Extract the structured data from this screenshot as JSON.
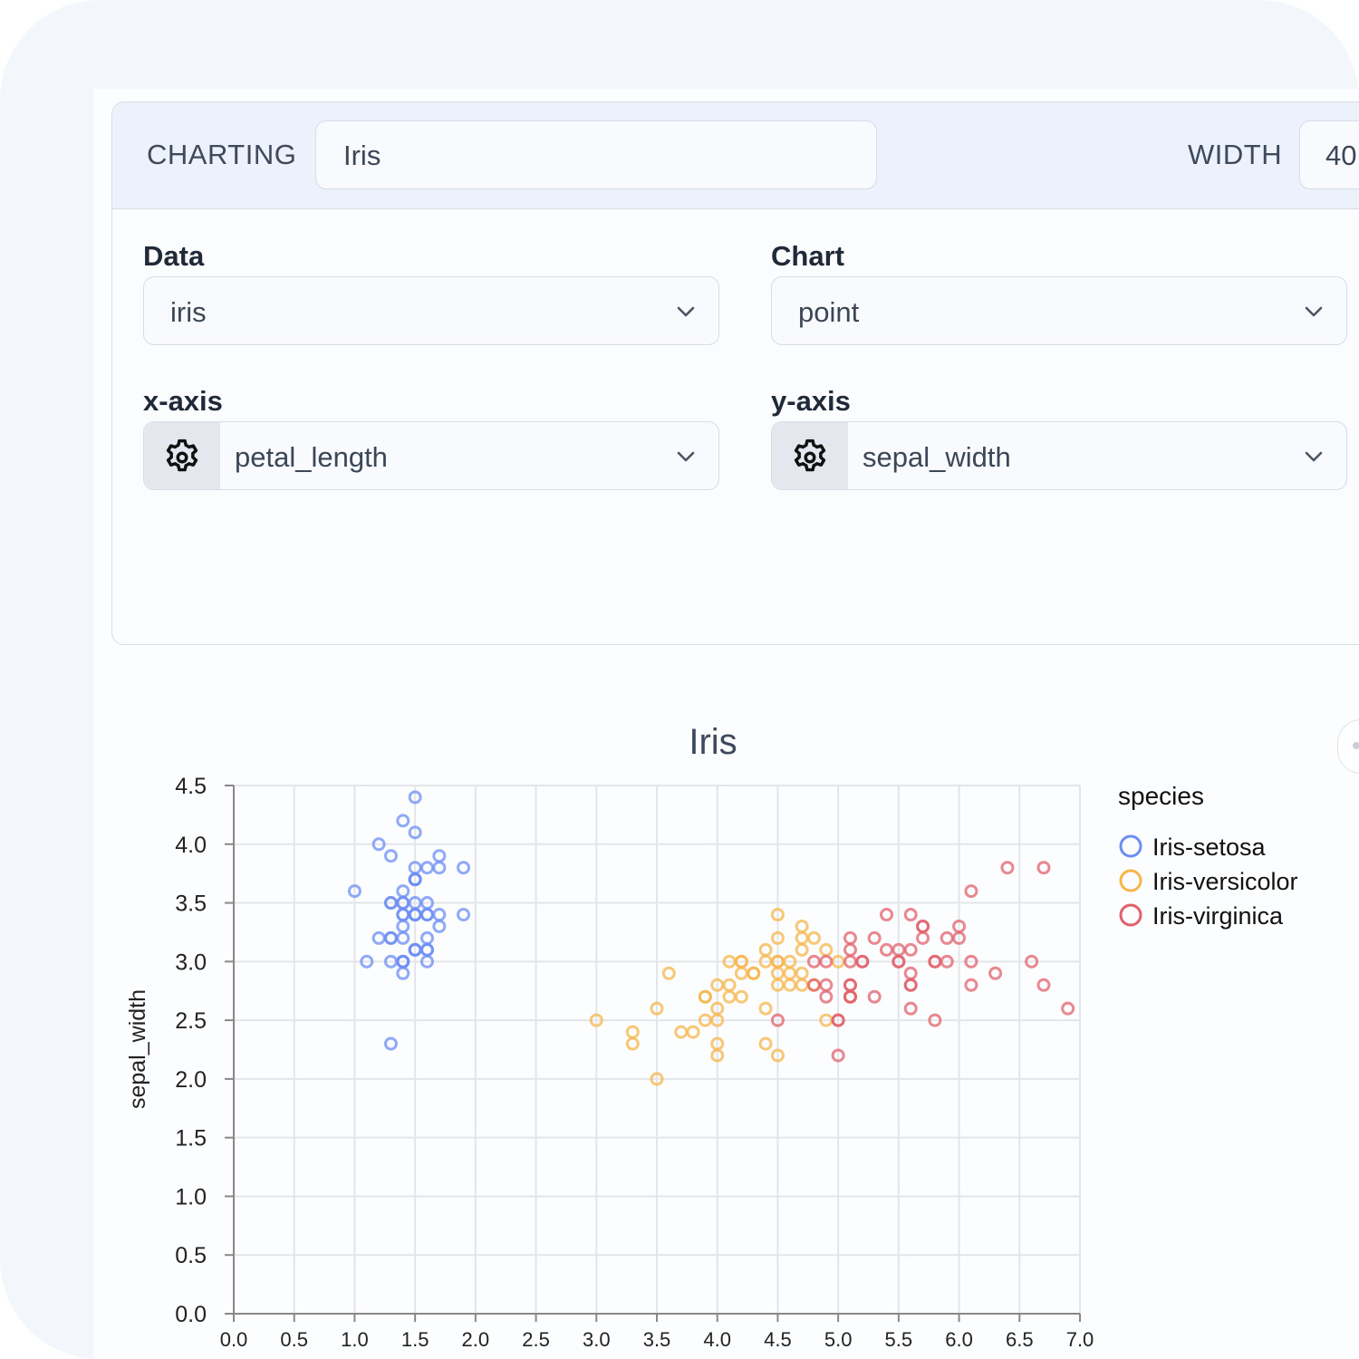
{
  "header": {
    "charting_label": "CHARTING",
    "title_value": "Iris",
    "width_label": "WIDTH",
    "width_value": "40"
  },
  "fields": {
    "data": {
      "label": "Data",
      "value": "iris"
    },
    "chart": {
      "label": "Chart",
      "value": "point"
    },
    "x_axis": {
      "label": "x-axis",
      "value": "petal_length"
    },
    "y_axis": {
      "label": "y-axis",
      "value": "sepal_width"
    }
  },
  "icons": {
    "chevron": "chevron-down-icon",
    "gear": "gear-icon"
  },
  "colors": {
    "setosa": "#6c8ef4",
    "versicolor": "#f7b54c",
    "virginica": "#e2606c",
    "accent_header": "#ecf1fc"
  },
  "chart_data": {
    "type": "scatter",
    "title": "Iris",
    "xlabel": "",
    "ylabel": "sepal_width",
    "xlim": [
      0,
      7.0
    ],
    "ylim": [
      0,
      4.5
    ],
    "xticks": [
      "0.0",
      "0.5",
      "1.0",
      "1.5",
      "2.0",
      "2.5",
      "3.0",
      "3.5",
      "4.0",
      "4.5",
      "5.0",
      "5.5",
      "6.0",
      "6.5",
      "7.0"
    ],
    "yticks": [
      "0.0",
      "0.5",
      "1.0",
      "1.5",
      "2.0",
      "2.5",
      "3.0",
      "3.5",
      "4.0",
      "4.5"
    ],
    "grid": true,
    "legend_title": "species",
    "legend_position": "right",
    "series": [
      {
        "name": "Iris-setosa",
        "color": "#6c8ef4",
        "points": [
          [
            1.4,
            3.5
          ],
          [
            1.4,
            3.0
          ],
          [
            1.3,
            3.2
          ],
          [
            1.5,
            3.1
          ],
          [
            1.4,
            3.6
          ],
          [
            1.7,
            3.9
          ],
          [
            1.4,
            3.4
          ],
          [
            1.5,
            3.4
          ],
          [
            1.4,
            2.9
          ],
          [
            1.5,
            3.1
          ],
          [
            1.5,
            3.7
          ],
          [
            1.6,
            3.4
          ],
          [
            1.4,
            3.0
          ],
          [
            1.1,
            3.0
          ],
          [
            1.2,
            4.0
          ],
          [
            1.5,
            4.4
          ],
          [
            1.3,
            3.9
          ],
          [
            1.4,
            3.5
          ],
          [
            1.7,
            3.8
          ],
          [
            1.5,
            3.8
          ],
          [
            1.7,
            3.4
          ],
          [
            1.5,
            3.7
          ],
          [
            1.0,
            3.6
          ],
          [
            1.7,
            3.3
          ],
          [
            1.9,
            3.4
          ],
          [
            1.6,
            3.0
          ],
          [
            1.6,
            3.4
          ],
          [
            1.5,
            3.5
          ],
          [
            1.4,
            3.4
          ],
          [
            1.6,
            3.2
          ],
          [
            1.6,
            3.1
          ],
          [
            1.5,
            3.4
          ],
          [
            1.5,
            4.1
          ],
          [
            1.4,
            4.2
          ],
          [
            1.5,
            3.1
          ],
          [
            1.2,
            3.2
          ],
          [
            1.3,
            3.5
          ],
          [
            1.3,
            3.0
          ],
          [
            1.5,
            3.4
          ],
          [
            1.3,
            3.5
          ],
          [
            1.3,
            2.3
          ],
          [
            1.3,
            3.2
          ],
          [
            1.6,
            3.5
          ],
          [
            1.9,
            3.8
          ],
          [
            1.4,
            3.0
          ],
          [
            1.6,
            3.8
          ],
          [
            1.4,
            3.2
          ],
          [
            1.5,
            3.7
          ],
          [
            1.4,
            3.3
          ],
          [
            1.6,
            3.1
          ]
        ]
      },
      {
        "name": "Iris-versicolor",
        "color": "#f7b54c",
        "points": [
          [
            4.7,
            3.2
          ],
          [
            4.5,
            3.2
          ],
          [
            4.9,
            3.1
          ],
          [
            4.0,
            2.3
          ],
          [
            4.6,
            2.8
          ],
          [
            4.5,
            2.8
          ],
          [
            4.7,
            3.3
          ],
          [
            3.3,
            2.4
          ],
          [
            4.6,
            2.9
          ],
          [
            3.9,
            2.7
          ],
          [
            3.5,
            2.0
          ],
          [
            4.2,
            3.0
          ],
          [
            4.0,
            2.2
          ],
          [
            4.7,
            2.9
          ],
          [
            3.6,
            2.9
          ],
          [
            4.4,
            3.1
          ],
          [
            4.5,
            3.0
          ],
          [
            4.1,
            2.7
          ],
          [
            4.5,
            2.2
          ],
          [
            3.9,
            2.5
          ],
          [
            4.8,
            3.2
          ],
          [
            4.0,
            2.8
          ],
          [
            4.9,
            2.5
          ],
          [
            4.7,
            2.8
          ],
          [
            4.3,
            2.9
          ],
          [
            4.4,
            3.0
          ],
          [
            4.8,
            2.8
          ],
          [
            5.0,
            3.0
          ],
          [
            4.5,
            2.9
          ],
          [
            3.5,
            2.6
          ],
          [
            3.8,
            2.4
          ],
          [
            3.7,
            2.4
          ],
          [
            3.9,
            2.7
          ],
          [
            5.1,
            2.7
          ],
          [
            4.5,
            3.0
          ],
          [
            4.5,
            3.4
          ],
          [
            4.7,
            3.1
          ],
          [
            4.4,
            2.3
          ],
          [
            4.1,
            3.0
          ],
          [
            4.0,
            2.5
          ],
          [
            4.4,
            2.6
          ],
          [
            4.6,
            3.0
          ],
          [
            4.0,
            2.6
          ],
          [
            3.3,
            2.3
          ],
          [
            4.2,
            2.7
          ],
          [
            4.2,
            3.0
          ],
          [
            4.2,
            2.9
          ],
          [
            4.3,
            2.9
          ],
          [
            3.0,
            2.5
          ],
          [
            4.1,
            2.8
          ]
        ]
      },
      {
        "name": "Iris-virginica",
        "color": "#e2606c",
        "points": [
          [
            6.0,
            3.3
          ],
          [
            5.1,
            2.7
          ],
          [
            5.9,
            3.0
          ],
          [
            5.6,
            2.9
          ],
          [
            5.8,
            3.0
          ],
          [
            6.6,
            3.0
          ],
          [
            4.5,
            2.5
          ],
          [
            6.3,
            2.9
          ],
          [
            5.8,
            2.5
          ],
          [
            6.1,
            3.6
          ],
          [
            5.1,
            3.2
          ],
          [
            5.3,
            2.7
          ],
          [
            5.5,
            3.0
          ],
          [
            5.0,
            2.5
          ],
          [
            5.1,
            2.8
          ],
          [
            5.3,
            3.2
          ],
          [
            5.5,
            3.0
          ],
          [
            6.7,
            3.8
          ],
          [
            6.9,
            2.6
          ],
          [
            5.0,
            2.2
          ],
          [
            5.7,
            3.2
          ],
          [
            4.9,
            2.8
          ],
          [
            6.7,
            2.8
          ],
          [
            4.9,
            2.7
          ],
          [
            5.7,
            3.3
          ],
          [
            6.0,
            3.2
          ],
          [
            4.8,
            2.8
          ],
          [
            4.9,
            3.0
          ],
          [
            5.6,
            2.8
          ],
          [
            5.8,
            3.0
          ],
          [
            6.1,
            2.8
          ],
          [
            6.4,
            3.8
          ],
          [
            5.6,
            2.8
          ],
          [
            5.1,
            2.8
          ],
          [
            5.6,
            2.6
          ],
          [
            6.1,
            3.0
          ],
          [
            5.6,
            3.4
          ],
          [
            5.5,
            3.1
          ],
          [
            4.8,
            3.0
          ],
          [
            5.4,
            3.1
          ],
          [
            5.6,
            3.1
          ],
          [
            5.1,
            3.1
          ],
          [
            5.1,
            2.7
          ],
          [
            5.9,
            3.2
          ],
          [
            5.7,
            3.3
          ],
          [
            5.2,
            3.0
          ],
          [
            5.0,
            2.5
          ],
          [
            5.2,
            3.0
          ],
          [
            5.4,
            3.4
          ],
          [
            5.1,
            3.0
          ]
        ]
      }
    ]
  }
}
